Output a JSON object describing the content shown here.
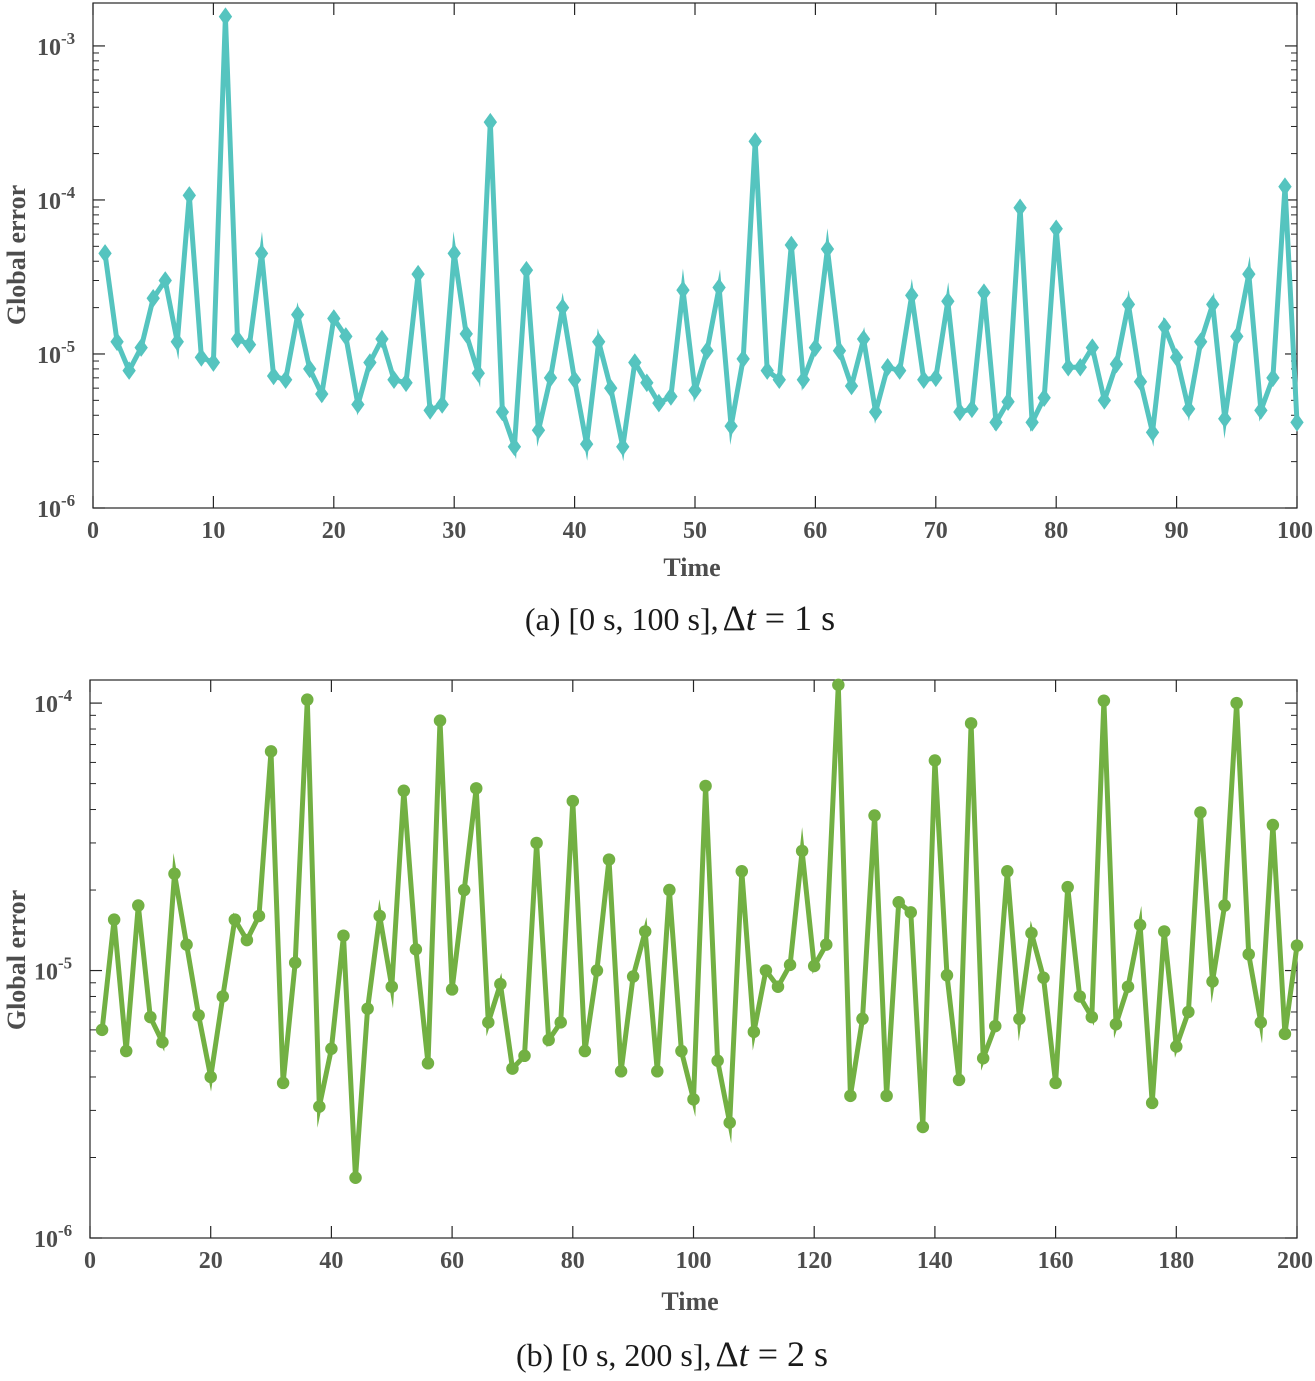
{
  "chart_data": [
    {
      "id": "a",
      "type": "line",
      "xlabel": "Time",
      "ylabel": "Global error",
      "yscale": "log",
      "xlim": [
        0,
        100
      ],
      "ylim": [
        1e-06,
        0.0019
      ],
      "xticks": [
        0,
        10,
        20,
        30,
        40,
        50,
        60,
        70,
        80,
        90,
        100
      ],
      "yticks": [
        {
          "base": "10",
          "exp": "-6",
          "value": 1e-06
        },
        {
          "base": "10",
          "exp": "-5",
          "value": 1e-05
        },
        {
          "base": "10",
          "exp": "-4",
          "value": 0.0001
        },
        {
          "base": "10",
          "exp": "-3",
          "value": 0.001
        }
      ],
      "caption": {
        "prefix": "(a) [0 s, 100 s],",
        "delta": "Δ",
        "t": "t",
        "rest": " = 1 s"
      },
      "color": "#55c4bf",
      "marker": "diamond",
      "series": [
        {
          "name": "Global error",
          "x": [
            1,
            2,
            3,
            4,
            5,
            6,
            7,
            8,
            9,
            10,
            11,
            12,
            13,
            14,
            15,
            16,
            17,
            18,
            19,
            20,
            21,
            22,
            23,
            24,
            25,
            26,
            27,
            28,
            29,
            30,
            31,
            32,
            33,
            34,
            35,
            36,
            37,
            38,
            39,
            40,
            41,
            42,
            43,
            44,
            45,
            46,
            47,
            48,
            49,
            50,
            51,
            52,
            53,
            54,
            55,
            56,
            57,
            58,
            59,
            60,
            61,
            62,
            63,
            64,
            65,
            66,
            67,
            68,
            69,
            70,
            71,
            72,
            73,
            74,
            75,
            76,
            77,
            78,
            79,
            80,
            81,
            82,
            83,
            84,
            85,
            86,
            87,
            88,
            89,
            90,
            91,
            92,
            93,
            94,
            95,
            96,
            97,
            98,
            99,
            100
          ],
          "values": [
            4.5e-05,
            1.2e-05,
            7.8e-06,
            1.1e-05,
            2.3e-05,
            3e-05,
            1.2e-05,
            0.000107,
            9.5e-06,
            8.8e-06,
            0.00155,
            1.25e-05,
            1.15e-05,
            4.5e-05,
            7.2e-06,
            6.8e-06,
            1.8e-05,
            8e-06,
            5.5e-06,
            1.7e-05,
            1.3e-05,
            4.7e-06,
            8.8e-06,
            1.25e-05,
            6.8e-06,
            6.5e-06,
            3.3e-05,
            4.3e-06,
            4.7e-06,
            4.5e-05,
            1.35e-05,
            7.5e-06,
            0.00032,
            4.2e-06,
            2.5e-06,
            3.5e-05,
            3.2e-06,
            7e-06,
            2e-05,
            6.8e-06,
            2.6e-06,
            1.2e-05,
            6e-06,
            2.5e-06,
            8.8e-06,
            6.5e-06,
            4.8e-06,
            5.3e-06,
            2.6e-05,
            5.8e-06,
            1.05e-05,
            2.7e-05,
            3.4e-06,
            9.3e-06,
            0.00024,
            7.8e-06,
            6.8e-06,
            5.1e-05,
            6.8e-06,
            1.1e-05,
            4.8e-05,
            1.05e-05,
            6.2e-06,
            1.25e-05,
            4.2e-06,
            8.2e-06,
            7.8e-06,
            2.4e-05,
            6.8e-06,
            7e-06,
            2.2e-05,
            4.2e-06,
            4.4e-06,
            2.5e-05,
            3.6e-06,
            4.9e-06,
            8.9e-05,
            3.6e-06,
            5.2e-06,
            6.5e-05,
            8.2e-06,
            8.2e-06,
            1.1e-05,
            5e-06,
            8.6e-06,
            2.1e-05,
            6.6e-06,
            3.1e-06,
            1.5e-05,
            9.5e-06,
            4.4e-06,
            1.2e-05,
            2.1e-05,
            3.8e-06,
            1.3e-05,
            3.3e-05,
            4.3e-06,
            7e-06,
            0.000122,
            3.6e-06
          ]
        }
      ]
    },
    {
      "id": "b",
      "type": "line",
      "xlabel": "Time",
      "ylabel": "Global error",
      "yscale": "log",
      "xlim": [
        0,
        200
      ],
      "ylim": [
        1e-06,
        0.000122
      ],
      "xticks": [
        0,
        20,
        40,
        60,
        80,
        100,
        120,
        140,
        160,
        180,
        200
      ],
      "yticks": [
        {
          "base": "10",
          "exp": "-6",
          "value": 1e-06
        },
        {
          "base": "10",
          "exp": "-5",
          "value": 1e-05
        },
        {
          "base": "10",
          "exp": "-4",
          "value": 0.0001
        }
      ],
      "caption": {
        "prefix": "(b) [0 s, 200 s],",
        "delta": "Δ",
        "t": "t",
        "rest": " = 2 s"
      },
      "color": "#72b043",
      "marker": "circle",
      "series": [
        {
          "name": "Global error",
          "x": [
            2,
            4,
            6,
            8,
            10,
            12,
            14,
            16,
            18,
            20,
            22,
            24,
            26,
            28,
            30,
            32,
            34,
            36,
            38,
            40,
            42,
            44,
            46,
            48,
            50,
            52,
            54,
            56,
            58,
            60,
            62,
            64,
            66,
            68,
            70,
            72,
            74,
            76,
            78,
            80,
            82,
            84,
            86,
            88,
            90,
            92,
            94,
            96,
            98,
            100,
            102,
            104,
            106,
            108,
            110,
            112,
            114,
            116,
            118,
            120,
            122,
            124,
            126,
            128,
            130,
            132,
            134,
            136,
            138,
            140,
            142,
            144,
            146,
            148,
            150,
            152,
            154,
            156,
            158,
            160,
            162,
            164,
            166,
            168,
            170,
            172,
            174,
            176,
            178,
            180,
            182,
            184,
            186,
            188,
            190,
            192,
            194,
            196,
            198,
            200
          ],
          "values": [
            6e-06,
            1.55e-05,
            5e-06,
            1.75e-05,
            6.7e-06,
            5.4e-06,
            2.3e-05,
            1.25e-05,
            6.8e-06,
            4e-06,
            8e-06,
            1.55e-05,
            1.3e-05,
            1.6e-05,
            6.6e-05,
            3.8e-06,
            1.07e-05,
            0.000103,
            3.1e-06,
            5.1e-06,
            1.35e-05,
            1.68e-06,
            7.2e-06,
            1.6e-05,
            8.7e-06,
            4.7e-05,
            1.2e-05,
            4.5e-06,
            8.6e-05,
            8.5e-06,
            2e-05,
            4.8e-05,
            6.4e-06,
            8.9e-06,
            4.3e-06,
            4.8e-06,
            3e-05,
            5.5e-06,
            6.4e-06,
            4.3e-05,
            5e-06,
            1e-05,
            2.6e-05,
            4.2e-06,
            9.5e-06,
            1.4e-05,
            4.2e-06,
            2e-05,
            5e-06,
            3.3e-06,
            4.9e-05,
            4.6e-06,
            2.7e-06,
            2.35e-05,
            5.9e-06,
            1e-05,
            8.7e-06,
            1.05e-05,
            2.8e-05,
            1.04e-05,
            1.25e-05,
            0.000117,
            3.4e-06,
            6.6e-06,
            3.8e-05,
            3.4e-06,
            1.8e-05,
            1.65e-05,
            2.6e-06,
            6.1e-05,
            9.6e-06,
            3.9e-06,
            8.4e-05,
            4.7e-06,
            6.2e-06,
            2.35e-05,
            6.6e-06,
            1.38e-05,
            9.4e-06,
            3.8e-06,
            2.05e-05,
            8e-06,
            6.7e-06,
            0.000102,
            6.3e-06,
            8.7e-06,
            1.48e-05,
            3.2e-06,
            1.4e-05,
            5.2e-06,
            7e-06,
            3.9e-05,
            9.1e-06,
            1.75e-05,
            0.0001,
            1.15e-05,
            6.4e-06,
            3.5e-05,
            5.8e-06,
            1.24e-05
          ]
        }
      ]
    }
  ]
}
